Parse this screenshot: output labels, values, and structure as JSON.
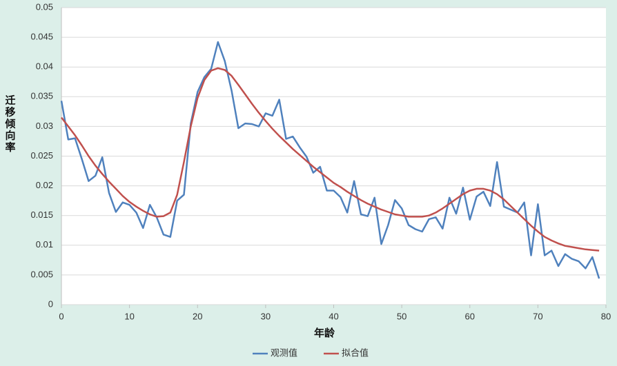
{
  "chart_data": {
    "type": "line",
    "ylabel": "迁移倾向率",
    "xlabel": "年龄",
    "x": [
      0,
      1,
      2,
      3,
      4,
      5,
      6,
      7,
      8,
      9,
      10,
      11,
      12,
      13,
      14,
      15,
      16,
      17,
      18,
      19,
      20,
      21,
      22,
      23,
      24,
      25,
      26,
      27,
      28,
      29,
      30,
      31,
      32,
      33,
      34,
      35,
      36,
      37,
      38,
      39,
      40,
      41,
      42,
      43,
      44,
      45,
      46,
      47,
      48,
      49,
      50,
      51,
      52,
      53,
      54,
      55,
      56,
      57,
      58,
      59,
      60,
      61,
      62,
      63,
      64,
      65,
      66,
      67,
      68,
      69,
      70,
      71,
      72,
      73,
      74,
      75,
      76,
      77,
      78,
      79
    ],
    "series": [
      {
        "name": "观测值",
        "color": "#4f81bd",
        "values": [
          0.0343,
          0.0278,
          0.028,
          0.0245,
          0.0208,
          0.0217,
          0.0248,
          0.0188,
          0.0156,
          0.0172,
          0.0168,
          0.0155,
          0.0129,
          0.0168,
          0.0147,
          0.0118,
          0.0114,
          0.0175,
          0.0185,
          0.0305,
          0.0358,
          0.0383,
          0.0397,
          0.0442,
          0.041,
          0.036,
          0.0297,
          0.0305,
          0.0304,
          0.03,
          0.0322,
          0.0318,
          0.0345,
          0.0279,
          0.0283,
          0.0265,
          0.0249,
          0.0222,
          0.0232,
          0.0192,
          0.0192,
          0.0181,
          0.0155,
          0.0208,
          0.0152,
          0.0149,
          0.018,
          0.0102,
          0.0134,
          0.0176,
          0.0162,
          0.0134,
          0.0127,
          0.0123,
          0.0144,
          0.0147,
          0.0128,
          0.018,
          0.0153,
          0.0197,
          0.0143,
          0.0182,
          0.019,
          0.0166,
          0.024,
          0.0165,
          0.016,
          0.0155,
          0.0172,
          0.0083,
          0.0169,
          0.0083,
          0.0091,
          0.0065,
          0.0085,
          0.0077,
          0.0073,
          0.0061,
          0.008,
          0.0044
        ]
      },
      {
        "name": "拟合值",
        "color": "#c0504d",
        "values": [
          0.0315,
          0.03,
          0.0285,
          0.0268,
          0.025,
          0.0234,
          0.022,
          0.0207,
          0.0195,
          0.0183,
          0.0173,
          0.0165,
          0.0158,
          0.0152,
          0.0148,
          0.0149,
          0.0155,
          0.0185,
          0.024,
          0.03,
          0.0348,
          0.0378,
          0.0394,
          0.0398,
          0.0395,
          0.0385,
          0.037,
          0.0354,
          0.0338,
          0.0323,
          0.0309,
          0.0296,
          0.0284,
          0.0273,
          0.0262,
          0.0252,
          0.0242,
          0.0232,
          0.0223,
          0.0214,
          0.0205,
          0.0198,
          0.019,
          0.0183,
          0.0176,
          0.017,
          0.0165,
          0.016,
          0.0156,
          0.0152,
          0.015,
          0.0148,
          0.0148,
          0.0148,
          0.015,
          0.0155,
          0.0162,
          0.017,
          0.0178,
          0.0186,
          0.0192,
          0.0195,
          0.0195,
          0.0192,
          0.0186,
          0.0177,
          0.0166,
          0.0155,
          0.0144,
          0.0133,
          0.0123,
          0.0114,
          0.0108,
          0.0103,
          0.0099,
          0.0097,
          0.0095,
          0.0093,
          0.0092,
          0.0091
        ]
      }
    ],
    "xlim": [
      0,
      80
    ],
    "xticks": [
      0,
      10,
      20,
      30,
      40,
      50,
      60,
      70,
      80
    ],
    "ylim": [
      0,
      0.05
    ],
    "yticks": [
      0,
      0.005,
      0.01,
      0.015,
      0.02,
      0.025,
      0.03,
      0.035,
      0.04,
      0.045,
      0.05
    ],
    "grid": true,
    "legend": "bottom"
  }
}
